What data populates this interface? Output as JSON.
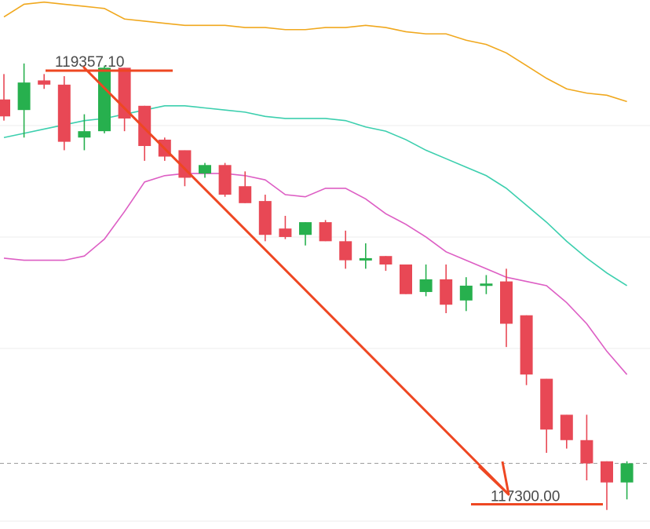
{
  "chart_data": {
    "type": "candlestick",
    "y_range": [
      117150,
      119650
    ],
    "grid": "horizontal",
    "colors": {
      "up": "#27b04e",
      "down": "#e84855",
      "upper_band": "#f0a81e",
      "middle_band": "#3ccfae",
      "lower_band": "#dd5ec4",
      "annotation": "#ee4722",
      "current_price_line": "#9a9a9a"
    },
    "annotations": {
      "high_label": "119357.10",
      "target_label": "117300.00",
      "high_price": 119357.1,
      "target_price": 117300.0
    },
    "candles": [
      {
        "o": 119180,
        "h": 119300,
        "l": 119080,
        "c": 119100
      },
      {
        "o": 119130,
        "h": 119350,
        "l": 119000,
        "c": 119260
      },
      {
        "o": 119270,
        "h": 119300,
        "l": 119230,
        "c": 119250
      },
      {
        "o": 119250,
        "h": 119290,
        "l": 118940,
        "c": 118980
      },
      {
        "o": 119000,
        "h": 119110,
        "l": 118940,
        "c": 119030
      },
      {
        "o": 119030,
        "h": 119340,
        "l": 119020,
        "c": 119330
      },
      {
        "o": 119330,
        "h": 119330,
        "l": 119030,
        "c": 119090
      },
      {
        "o": 119150,
        "h": 119150,
        "l": 118890,
        "c": 118960
      },
      {
        "o": 118990,
        "h": 119000,
        "l": 118890,
        "c": 118910
      },
      {
        "o": 118940,
        "h": 118940,
        "l": 118770,
        "c": 118810
      },
      {
        "o": 118830,
        "h": 118880,
        "l": 118810,
        "c": 118870
      },
      {
        "o": 118870,
        "h": 118880,
        "l": 118720,
        "c": 118730
      },
      {
        "o": 118770,
        "h": 118840,
        "l": 118690,
        "c": 118690
      },
      {
        "o": 118700,
        "h": 118730,
        "l": 118510,
        "c": 118540
      },
      {
        "o": 118570,
        "h": 118630,
        "l": 118520,
        "c": 118530
      },
      {
        "o": 118540,
        "h": 118600,
        "l": 118490,
        "c": 118600
      },
      {
        "o": 118600,
        "h": 118610,
        "l": 118510,
        "c": 118510
      },
      {
        "o": 118510,
        "h": 118560,
        "l": 118380,
        "c": 118420
      },
      {
        "o": 118420,
        "h": 118500,
        "l": 118380,
        "c": 118430
      },
      {
        "o": 118440,
        "h": 118440,
        "l": 118370,
        "c": 118400
      },
      {
        "o": 118400,
        "h": 118400,
        "l": 118260,
        "c": 118260
      },
      {
        "o": 118270,
        "h": 118400,
        "l": 118250,
        "c": 118330
      },
      {
        "o": 118330,
        "h": 118400,
        "l": 118170,
        "c": 118210
      },
      {
        "o": 118230,
        "h": 118340,
        "l": 118180,
        "c": 118300
      },
      {
        "o": 118300,
        "h": 118350,
        "l": 118260,
        "c": 118310
      },
      {
        "o": 118320,
        "h": 118380,
        "l": 118010,
        "c": 118120
      },
      {
        "o": 118160,
        "h": 118160,
        "l": 117830,
        "c": 117880
      },
      {
        "o": 117860,
        "h": 117860,
        "l": 117510,
        "c": 117620
      },
      {
        "o": 117690,
        "h": 117690,
        "l": 117530,
        "c": 117570
      },
      {
        "o": 117570,
        "h": 117690,
        "l": 117380,
        "c": 117460
      },
      {
        "o": 117470,
        "h": 117470,
        "l": 117240,
        "c": 117370
      },
      {
        "o": 117370,
        "h": 117470,
        "l": 117290,
        "c": 117460
      }
    ],
    "bands": {
      "upper": [
        119570,
        119630,
        119640,
        119630,
        119620,
        119610,
        119560,
        119550,
        119540,
        119530,
        119530,
        119530,
        119520,
        119520,
        119510,
        119510,
        119520,
        119520,
        119530,
        119520,
        119500,
        119490,
        119490,
        119460,
        119440,
        119400,
        119340,
        119280,
        119230,
        119210,
        119200,
        119170
      ],
      "middle": [
        119000,
        119020,
        119040,
        119060,
        119080,
        119090,
        119110,
        119130,
        119150,
        119150,
        119140,
        119130,
        119120,
        119100,
        119090,
        119090,
        119090,
        119080,
        119050,
        119030,
        118990,
        118940,
        118900,
        118860,
        118820,
        118760,
        118680,
        118600,
        118510,
        118430,
        118360,
        118300
      ],
      "lower": [
        118430,
        118420,
        118420,
        118420,
        118440,
        118520,
        118650,
        118790,
        118820,
        118830,
        118830,
        118830,
        118820,
        118800,
        118730,
        118720,
        118760,
        118760,
        118710,
        118640,
        118590,
        118530,
        118460,
        118420,
        118380,
        118340,
        118320,
        118300,
        118220,
        118120,
        117990,
        117880
      ]
    }
  }
}
